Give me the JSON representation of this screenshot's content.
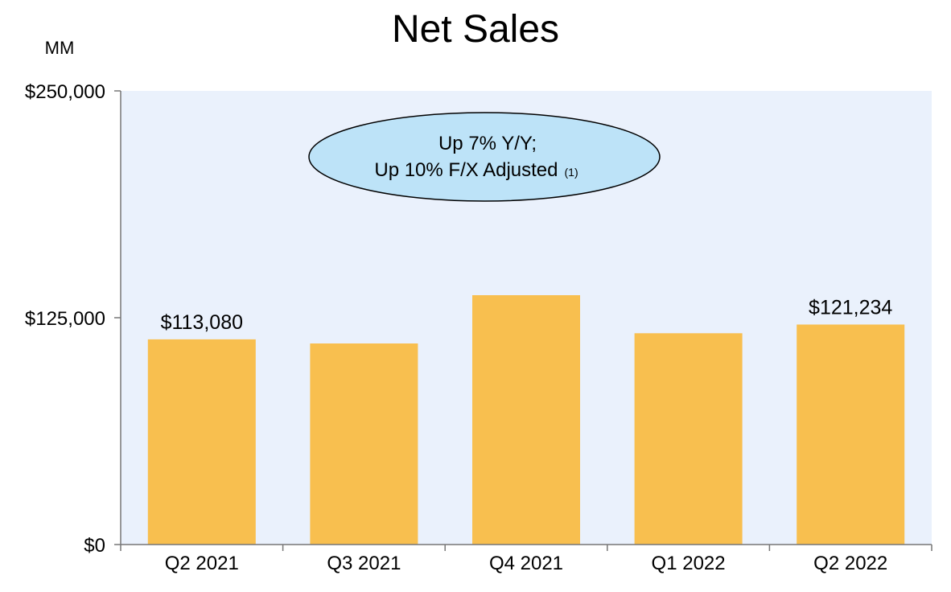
{
  "colors": {
    "plot_background": "#EAF1FC",
    "bar": "#F8BF4F",
    "callout_fill": "#BDE3F8",
    "axis": "#777777"
  },
  "chart_data": {
    "type": "bar",
    "title": "Net Sales",
    "unit_label": "MM",
    "categories": [
      "Q2 2021",
      "Q3 2021",
      "Q4 2021",
      "Q1 2022",
      "Q2 2022"
    ],
    "series": [
      {
        "values": [
          113080,
          110812,
          137412,
          116444,
          121234
        ]
      }
    ],
    "data_labels": [
      {
        "index": 0,
        "text": "$113,080"
      },
      {
        "index": 4,
        "text": "$121,234"
      }
    ],
    "y_ticks": [
      {
        "value": 0,
        "label": "$0"
      },
      {
        "value": 125000,
        "label": "$125,000"
      },
      {
        "value": 250000,
        "label": "$250,000"
      }
    ],
    "ylim": [
      0,
      250000
    ],
    "grid": false,
    "annotation": {
      "line1": "Up 7% Y/Y;",
      "line2": "Up 10% F/X Adjusted",
      "footnote": "(1)"
    }
  }
}
